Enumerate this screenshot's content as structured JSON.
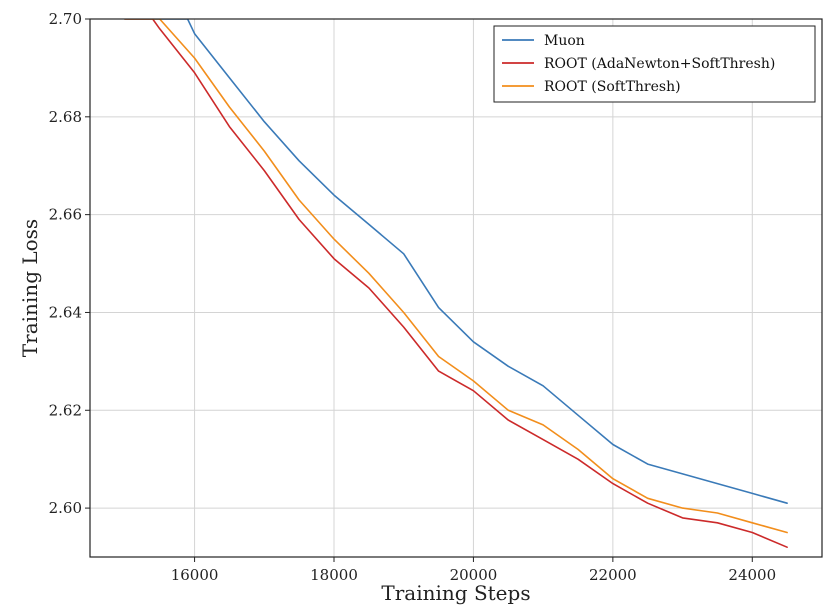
{
  "chart_data": {
    "type": "line",
    "title": "",
    "xlabel": "Training Steps",
    "ylabel": "Training Loss",
    "xlim": [
      14500,
      25000
    ],
    "ylim": [
      2.59,
      2.7
    ],
    "xticks": [
      16000,
      18000,
      20000,
      22000,
      24000
    ],
    "yticks": [
      2.6,
      2.62,
      2.64,
      2.66,
      2.68,
      2.7
    ],
    "xtick_labels": [
      "16000",
      "18000",
      "20000",
      "22000",
      "24000"
    ],
    "ytick_labels": [
      "2.60",
      "2.62",
      "2.64",
      "2.66",
      "2.68",
      "2.70"
    ],
    "grid": true,
    "legend_position": "top-right",
    "series": [
      {
        "name": "Muon",
        "color": "#3a7ab8",
        "x": [
          15000,
          15500,
          15900,
          16000,
          16500,
          17000,
          17500,
          18000,
          18500,
          19000,
          19500,
          20000,
          20500,
          21000,
          21500,
          22000,
          22500,
          23000,
          23500,
          24000,
          24500
        ],
        "y": [
          2.7,
          2.7,
          2.7,
          2.697,
          2.688,
          2.679,
          2.671,
          2.664,
          2.658,
          2.652,
          2.641,
          2.634,
          2.629,
          2.625,
          2.619,
          2.613,
          2.609,
          2.607,
          2.605,
          2.603,
          2.601
        ]
      },
      {
        "name": "ROOT (AdaNewton+SoftThresh)",
        "color": "#cc2a2a",
        "x": [
          15000,
          15400,
          15500,
          16000,
          16500,
          17000,
          17500,
          18000,
          18500,
          19000,
          19500,
          20000,
          20500,
          21000,
          21500,
          22000,
          22500,
          23000,
          23500,
          24000,
          24500
        ],
        "y": [
          2.7,
          2.7,
          2.698,
          2.689,
          2.678,
          2.669,
          2.659,
          2.651,
          2.645,
          2.637,
          2.628,
          2.624,
          2.618,
          2.614,
          2.61,
          2.605,
          2.601,
          2.598,
          2.597,
          2.595,
          2.592
        ]
      },
      {
        "name": "ROOT (SoftThresh)",
        "color": "#f28e1c",
        "x": [
          15000,
          15400,
          15500,
          16000,
          16500,
          17000,
          17500,
          18000,
          18500,
          19000,
          19500,
          20000,
          20500,
          21000,
          21500,
          22000,
          22500,
          23000,
          23500,
          24000,
          24500
        ],
        "y": [
          2.7,
          2.7,
          2.7,
          2.692,
          2.682,
          2.673,
          2.663,
          2.655,
          2.648,
          2.64,
          2.631,
          2.626,
          2.62,
          2.617,
          2.612,
          2.606,
          2.602,
          2.6,
          2.599,
          2.597,
          2.595
        ]
      }
    ]
  }
}
